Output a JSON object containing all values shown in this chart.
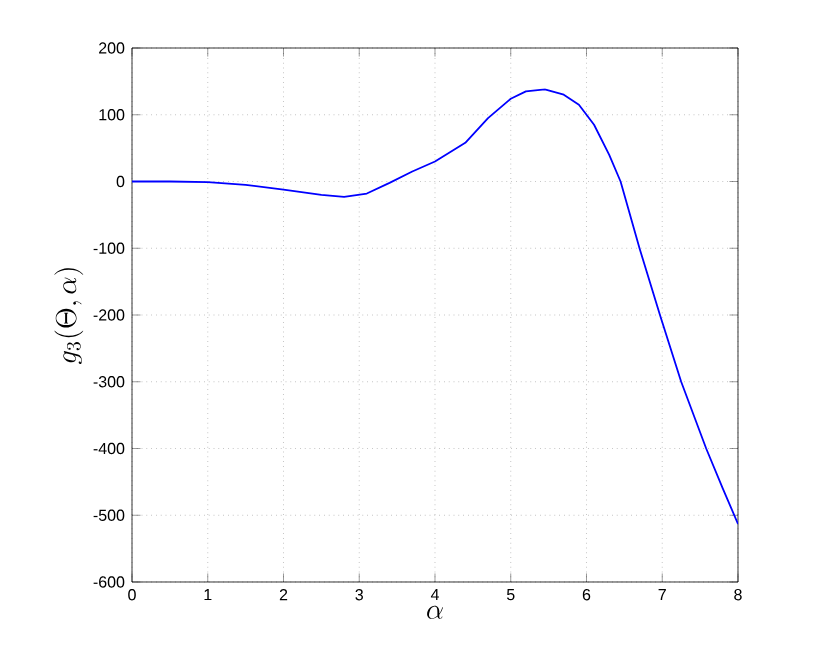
{
  "chart_data": {
    "type": "line",
    "xlabel": "\\alpha",
    "ylabel": "g_3(\\Theta,\\alpha)",
    "x": [
      0,
      0.5,
      1,
      1.5,
      2,
      2.5,
      2.8,
      3.1,
      3.4,
      3.7,
      4,
      4.4,
      4.7,
      5,
      5.2,
      5.45,
      5.7,
      5.9,
      6.1,
      6.3,
      6.45,
      6.7,
      6.97,
      7.25,
      7.58,
      7.8,
      8
    ],
    "series": [
      {
        "color": "#0000ff",
        "values": [
          0,
          0,
          -1,
          -5,
          -12,
          -20,
          -23,
          -18,
          -2,
          15,
          30,
          58,
          95,
          124,
          135,
          138,
          130,
          115,
          85,
          40,
          0,
          -100,
          -200,
          -300,
          -400,
          -460,
          -513
        ]
      }
    ],
    "xlim": [
      0,
      8
    ],
    "ylim": [
      -600,
      200
    ],
    "xticks": [
      0,
      1,
      2,
      3,
      4,
      5,
      6,
      7,
      8
    ],
    "yticks": [
      -600,
      -500,
      -400,
      -300,
      -200,
      -100,
      0,
      100,
      200
    ],
    "grid": true,
    "marker": "none",
    "line_style": "solid"
  }
}
